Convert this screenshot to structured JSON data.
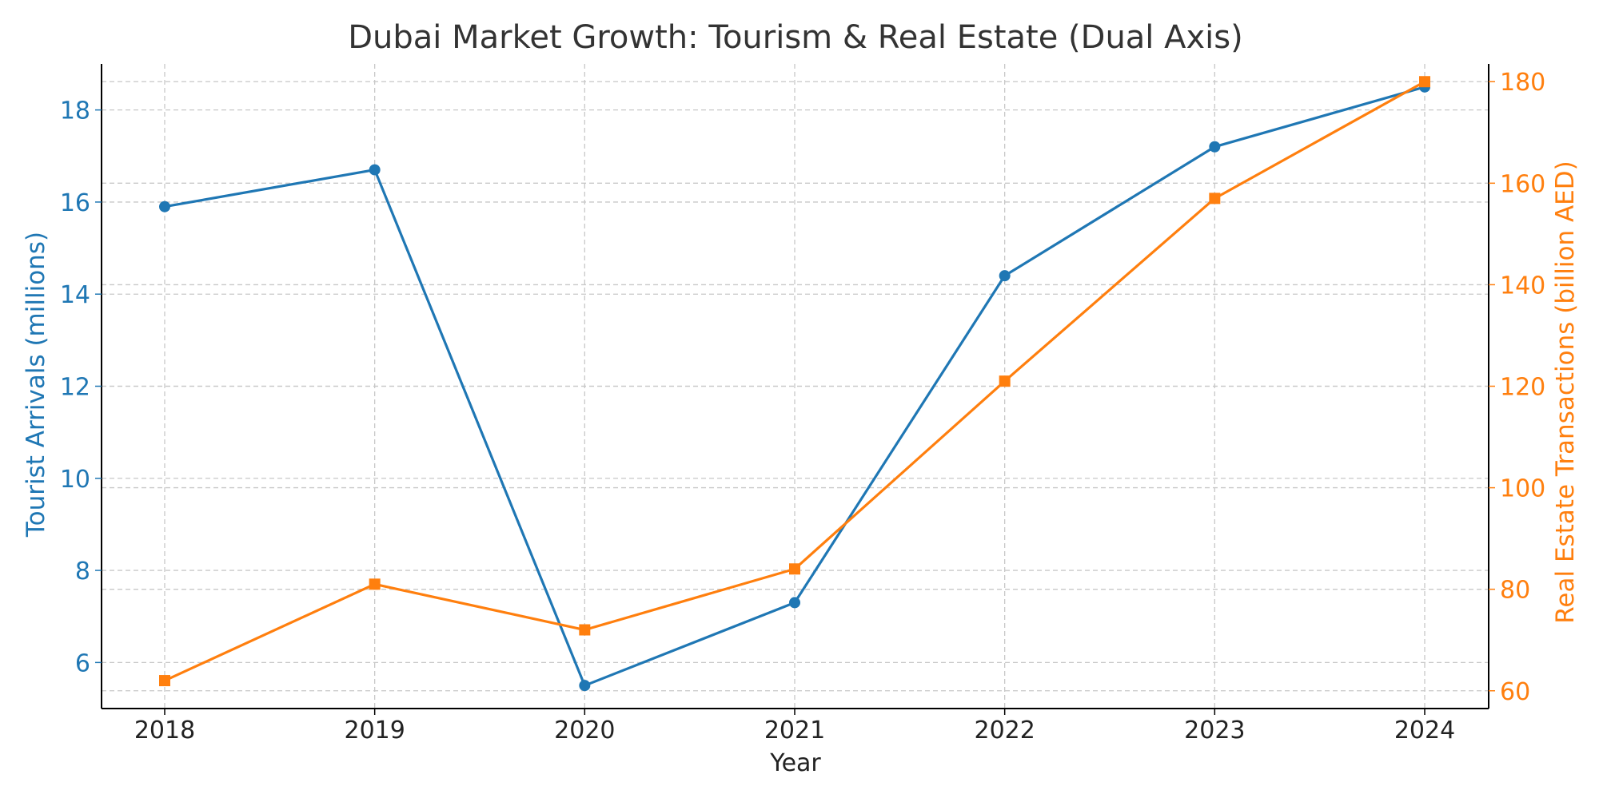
{
  "chart_data": {
    "type": "line",
    "title": "Dubai Market Growth: Tourism & Real Estate (Dual Axis)",
    "xlabel": "Year",
    "x": [
      2018,
      2019,
      2020,
      2021,
      2022,
      2023,
      2024
    ],
    "grid": true,
    "axes": {
      "left": {
        "label": "Tourist Arrivals (millions)",
        "ylim": [
          5.0,
          19.0
        ],
        "ticks": [
          6,
          8,
          10,
          12,
          14,
          16,
          18
        ],
        "color": "#1f77b4"
      },
      "right": {
        "label": "Real Estate Transactions (billion AED)",
        "ylim": [
          56.5,
          183.5
        ],
        "ticks": [
          60,
          80,
          100,
          120,
          140,
          160,
          180
        ],
        "color": "#ff7f0e"
      }
    },
    "series": [
      {
        "axis": "left",
        "marker": "circle",
        "color": "#1f77b4",
        "values": [
          15.9,
          16.7,
          5.5,
          7.3,
          14.4,
          17.2,
          18.5
        ]
      },
      {
        "axis": "right",
        "marker": "square",
        "color": "#ff7f0e",
        "values": [
          62,
          81,
          72,
          84,
          121,
          157,
          180
        ]
      }
    ]
  }
}
